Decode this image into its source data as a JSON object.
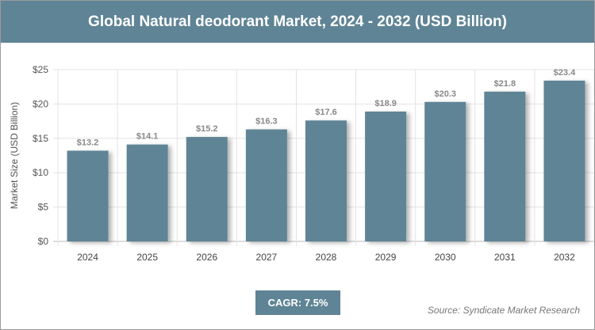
{
  "title": "Global Natural deodorant Market, 2024 - 2032 (USD Billion)",
  "cagr": "CAGR: 7.5%",
  "source": "Source: Syndicate Market Research",
  "colors": {
    "bar": "#5f8495",
    "header": "#5f8495"
  },
  "chart_data": {
    "type": "bar",
    "title": "Global Natural deodorant Market, 2024 - 2032 (USD Billion)",
    "ylabel": "Market Size (USD Billion)",
    "xlabel": "",
    "categories": [
      "2024",
      "2025",
      "2026",
      "2027",
      "2028",
      "2029",
      "2030",
      "2031",
      "2032"
    ],
    "values": [
      13.2,
      14.1,
      15.2,
      16.3,
      17.6,
      18.9,
      20.3,
      21.8,
      23.4
    ],
    "data_labels": [
      "$13.2",
      "$14.1",
      "$15.2",
      "$16.3",
      "$17.6",
      "$18.9",
      "$20.3",
      "$21.8",
      "$23.4"
    ],
    "yticks": [
      "$0",
      "$5",
      "$10",
      "$15",
      "$20",
      "$25"
    ],
    "ylim": [
      0,
      25
    ],
    "grid": true
  }
}
